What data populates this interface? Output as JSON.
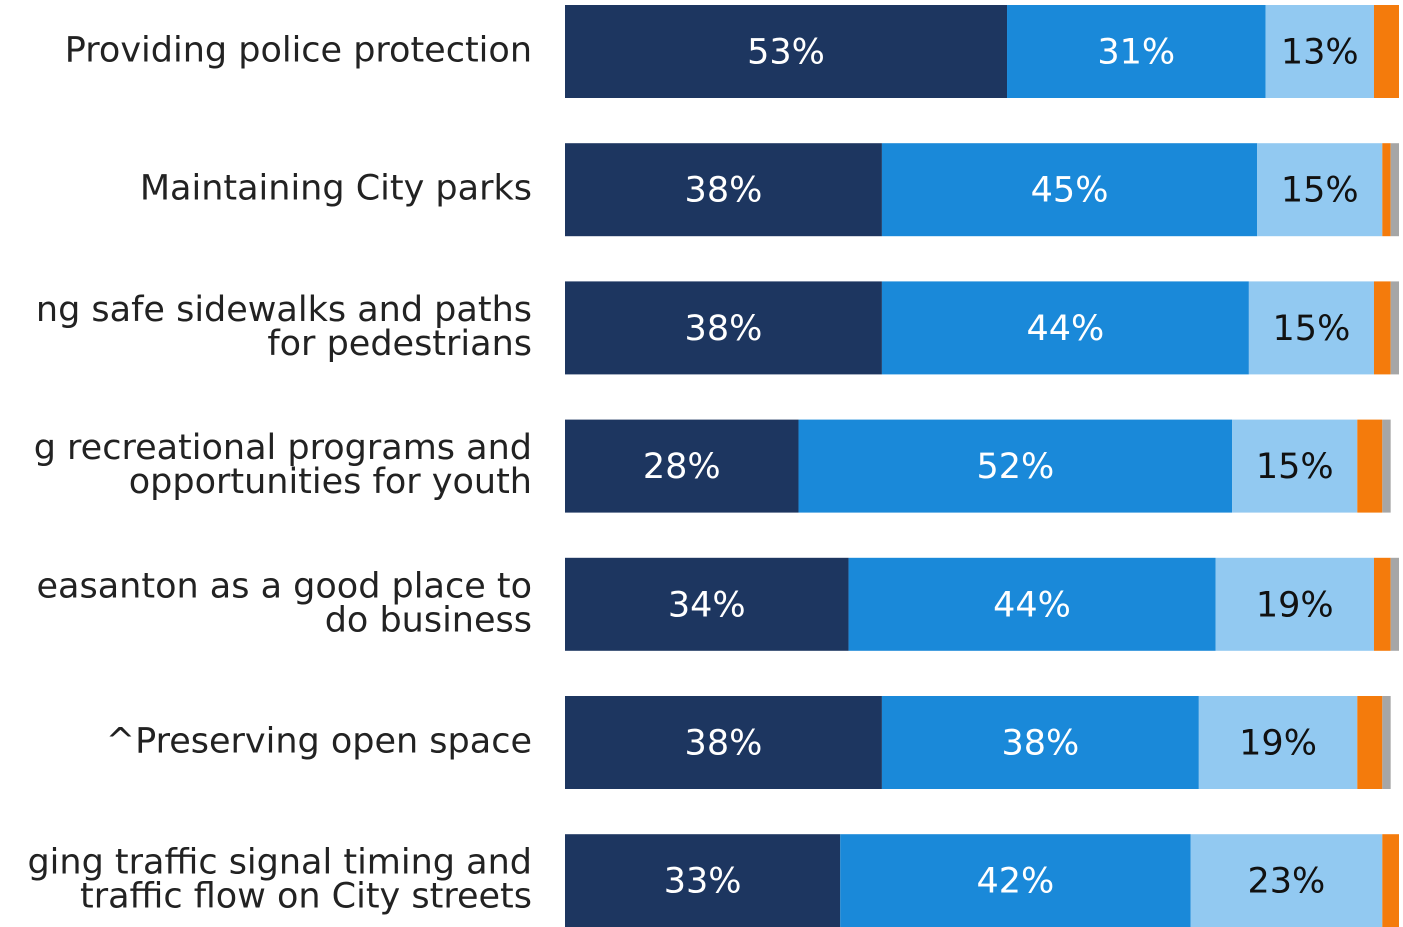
{
  "chart_data": {
    "type": "stacked-bar-horizontal",
    "categories": [
      [
        "Providing police protection"
      ],
      [
        "Maintaining City parks"
      ],
      [
        "ng safe sidewalks and paths",
        "for pedestrians"
      ],
      [
        "g recreational programs and",
        "opportunities for youth"
      ],
      [
        "easanton as a good place to",
        "do business"
      ],
      [
        "^Preserving open space"
      ],
      [
        "ging traffic signal timing and",
        "traffic flow on City streets"
      ]
    ],
    "xlim": [
      0,
      100
    ],
    "series": [
      {
        "color": "#1d3660",
        "label_color": "#ffffff",
        "values": [
          53,
          38,
          38,
          28,
          34,
          38,
          33
        ],
        "value_labels": [
          "53%",
          "38%",
          "38%",
          "28%",
          "34%",
          "38%",
          "33%"
        ]
      },
      {
        "color": "#1a89d9",
        "label_color": "#ffffff",
        "values": [
          31,
          45,
          44,
          52,
          44,
          38,
          42
        ],
        "value_labels": [
          "31%",
          "45%",
          "44%",
          "52%",
          "44%",
          "38%",
          "42%"
        ]
      },
      {
        "color": "#92c9f1",
        "label_color": "#111111",
        "values": [
          13,
          15,
          15,
          15,
          19,
          19,
          23
        ],
        "value_labels": [
          "13%",
          "15%",
          "15%",
          "15%",
          "19%",
          "19%",
          "23%"
        ]
      },
      {
        "color": "#f47b0c",
        "values": [
          3,
          1,
          2,
          3,
          2,
          3,
          2
        ]
      },
      {
        "color": "#a6a6a6",
        "values": [
          0,
          1,
          1,
          1,
          1,
          1,
          0
        ]
      }
    ]
  }
}
